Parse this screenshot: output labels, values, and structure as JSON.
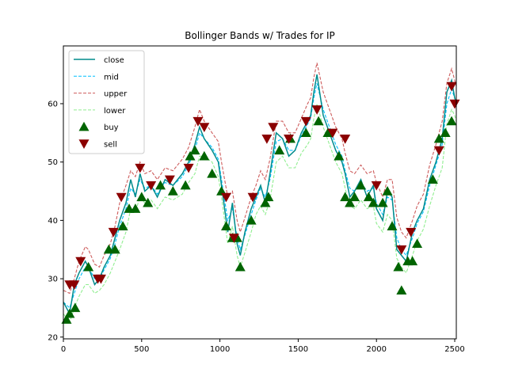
{
  "chart_data": {
    "type": "line",
    "title": "Bollinger Bands w/ Trades for IP",
    "xlabel": "",
    "ylabel": "",
    "xlim": [
      0,
      2510
    ],
    "ylim": [
      19.7,
      69.9
    ],
    "xticks": [
      0,
      500,
      1000,
      1500,
      2000,
      2500
    ],
    "yticks": [
      20,
      30,
      40,
      50,
      60
    ],
    "grid": false,
    "legend_placement": "top-left",
    "series": [
      {
        "name": "close",
        "style": "solid",
        "color": "#008b8b",
        "x": [
          0,
          40,
          70,
          100,
          140,
          160,
          200,
          230,
          260,
          300,
          330,
          360,
          400,
          430,
          460,
          490,
          520,
          560,
          600,
          650,
          700,
          760,
          800,
          840,
          870,
          900,
          950,
          990,
          1010,
          1050,
          1080,
          1110,
          1130,
          1160,
          1200,
          1230,
          1260,
          1290,
          1320,
          1360,
          1400,
          1440,
          1480,
          1520,
          1560,
          1580,
          1600,
          1620,
          1660,
          1700,
          1740,
          1780,
          1800,
          1830,
          1860,
          1900,
          1940,
          1980,
          2000,
          2040,
          2070,
          2100,
          2130,
          2160,
          2190,
          2230,
          2260,
          2300,
          2340,
          2380,
          2420,
          2450,
          2480,
          2500,
          2510
        ],
        "values": [
          26,
          24,
          29,
          31,
          33,
          32,
          29,
          30,
          32,
          34,
          37,
          40,
          43,
          47,
          44,
          48,
          45,
          46,
          44,
          47,
          46,
          48,
          50,
          53,
          56,
          54,
          52,
          50,
          46,
          38,
          43,
          36,
          34,
          38,
          42,
          44,
          46,
          43,
          48,
          55,
          54,
          51,
          52,
          55,
          57,
          58,
          62,
          65,
          58,
          55,
          52,
          50,
          48,
          44,
          45,
          47,
          44,
          46,
          42,
          40,
          45,
          44,
          35,
          34,
          33,
          38,
          40,
          42,
          47,
          50,
          54,
          62,
          64,
          61,
          60
        ]
      },
      {
        "name": "mid",
        "style": "dashed",
        "color": "#00bfff",
        "x": [
          0,
          40,
          70,
          100,
          140,
          160,
          200,
          230,
          260,
          300,
          330,
          360,
          400,
          430,
          460,
          490,
          520,
          560,
          600,
          650,
          700,
          760,
          800,
          840,
          870,
          900,
          950,
          990,
          1010,
          1050,
          1080,
          1110,
          1130,
          1160,
          1200,
          1230,
          1260,
          1290,
          1320,
          1360,
          1400,
          1440,
          1480,
          1520,
          1560,
          1580,
          1600,
          1620,
          1660,
          1700,
          1740,
          1780,
          1800,
          1830,
          1860,
          1900,
          1940,
          1980,
          2000,
          2040,
          2070,
          2100,
          2130,
          2160,
          2190,
          2230,
          2260,
          2300,
          2340,
          2380,
          2420,
          2450,
          2480,
          2500,
          2510
        ],
        "values": [
          26,
          25,
          27.5,
          30,
          32,
          32,
          30,
          30,
          31.5,
          33.5,
          36,
          39,
          42,
          45.5,
          44.5,
          47,
          45.5,
          46,
          44.5,
          46.5,
          46,
          47.5,
          49.5,
          52,
          55,
          54,
          52.5,
          50.5,
          47,
          40,
          42,
          37,
          35,
          37.5,
          41,
          43.5,
          45.5,
          44,
          47,
          53.5,
          54,
          52,
          52,
          54.5,
          56.5,
          57.5,
          61,
          63.5,
          59,
          56,
          53,
          51,
          48.5,
          45.5,
          45,
          46.5,
          45,
          45.5,
          43,
          41,
          44,
          43.5,
          37,
          35,
          34,
          37,
          39.5,
          41.5,
          46,
          49.5,
          53,
          60,
          62.5,
          61,
          60
        ]
      },
      {
        "name": "upper",
        "style": "dashed",
        "color": "#cd5c5c",
        "x": [
          0,
          40,
          70,
          100,
          140,
          160,
          200,
          230,
          260,
          300,
          330,
          360,
          400,
          430,
          460,
          490,
          520,
          560,
          600,
          650,
          700,
          760,
          800,
          840,
          870,
          900,
          950,
          990,
          1010,
          1050,
          1080,
          1110,
          1130,
          1160,
          1200,
          1230,
          1260,
          1290,
          1320,
          1360,
          1400,
          1440,
          1480,
          1520,
          1560,
          1580,
          1600,
          1620,
          1660,
          1700,
          1740,
          1780,
          1800,
          1830,
          1860,
          1900,
          1940,
          1980,
          2000,
          2040,
          2070,
          2100,
          2130,
          2160,
          2190,
          2230,
          2260,
          2300,
          2340,
          2380,
          2420,
          2450,
          2480,
          2500,
          2510
        ],
        "values": [
          28,
          27.5,
          30,
          33,
          35.5,
          35,
          32.5,
          32,
          34,
          36,
          39,
          43,
          46,
          48.5,
          47.5,
          50,
          48,
          48.5,
          47,
          49,
          48.5,
          50.5,
          52.5,
          56,
          59,
          57,
          55,
          53.5,
          50,
          44,
          45,
          40,
          38,
          40.5,
          44,
          46,
          48.5,
          47,
          50.5,
          57,
          57,
          55,
          55,
          57.5,
          60,
          61,
          64.5,
          67,
          62,
          59,
          56,
          54,
          51.5,
          48.5,
          48,
          49.5,
          48,
          48.5,
          46.5,
          44,
          47,
          47,
          40.5,
          38,
          37,
          40,
          42.5,
          44.5,
          49.5,
          53,
          57,
          63.5,
          66,
          64,
          63
        ]
      },
      {
        "name": "lower",
        "style": "dashed",
        "color": "#90ee90",
        "x": [
          0,
          40,
          70,
          100,
          140,
          160,
          200,
          230,
          260,
          300,
          330,
          360,
          400,
          430,
          460,
          490,
          520,
          560,
          600,
          650,
          700,
          760,
          800,
          840,
          870,
          900,
          950,
          990,
          1010,
          1050,
          1080,
          1110,
          1130,
          1160,
          1200,
          1230,
          1260,
          1290,
          1320,
          1360,
          1400,
          1440,
          1480,
          1520,
          1560,
          1580,
          1600,
          1620,
          1660,
          1700,
          1740,
          1780,
          1800,
          1830,
          1860,
          1900,
          1940,
          1980,
          2000,
          2040,
          2070,
          2100,
          2130,
          2160,
          2190,
          2230,
          2260,
          2300,
          2340,
          2380,
          2420,
          2450,
          2480,
          2500,
          2510
        ],
        "values": [
          24,
          22.5,
          25,
          27,
          29,
          29,
          27.5,
          28,
          29,
          31,
          33,
          35,
          38,
          42,
          41.5,
          44,
          43,
          43.5,
          42,
          44,
          43.5,
          44.5,
          46.5,
          48,
          51,
          51,
          50,
          47.5,
          44,
          36,
          39,
          34,
          32,
          34.5,
          38,
          41,
          42.5,
          41,
          43.5,
          50,
          51,
          49,
          49,
          51.5,
          53,
          54,
          57.5,
          60,
          56,
          53,
          50,
          48,
          45.5,
          42.5,
          42,
          43.5,
          42,
          42.5,
          39.5,
          38,
          41,
          40,
          33.5,
          32,
          31,
          34,
          36.5,
          38.5,
          42.5,
          46,
          49,
          56.5,
          59,
          58,
          57
        ]
      },
      {
        "name": "buy",
        "marker": "triangle-up",
        "color": "#006400",
        "x": [
          20,
          40,
          75,
          160,
          290,
          330,
          380,
          420,
          460,
          500,
          540,
          620,
          700,
          780,
          810,
          840,
          900,
          950,
          1010,
          1040,
          1080,
          1110,
          1130,
          1200,
          1290,
          1310,
          1380,
          1450,
          1550,
          1630,
          1690,
          1760,
          1800,
          1830,
          1860,
          1900,
          1950,
          1980,
          2040,
          2070,
          2100,
          2140,
          2160,
          2200,
          2230,
          2260,
          2360,
          2400,
          2440,
          2480
        ],
        "values": [
          23,
          24,
          25,
          32,
          35,
          35,
          39,
          42,
          42,
          44,
          43,
          46,
          45,
          46,
          51,
          52,
          51,
          48,
          45,
          39,
          37,
          37,
          32,
          40,
          43,
          44,
          52,
          54,
          55,
          57,
          55,
          51,
          44,
          43,
          44,
          46,
          44,
          43,
          43,
          45,
          39,
          32,
          28,
          33,
          33,
          36,
          47,
          54,
          55,
          57
        ]
      },
      {
        "name": "sell",
        "marker": "triangle-down",
        "color": "#8b0000",
        "x": [
          40,
          70,
          110,
          220,
          240,
          320,
          370,
          490,
          560,
          680,
          800,
          860,
          900,
          1040,
          1090,
          1210,
          1300,
          1340,
          1440,
          1550,
          1620,
          1720,
          1800,
          2000,
          2160,
          2220,
          2400,
          2480,
          2500
        ],
        "values": [
          29,
          29,
          33,
          30,
          30,
          38,
          44,
          49,
          46,
          47,
          49,
          57,
          56,
          44,
          37,
          44,
          54,
          56,
          54,
          57,
          59,
          55,
          54,
          46,
          35,
          38,
          52,
          63,
          60
        ]
      }
    ]
  }
}
